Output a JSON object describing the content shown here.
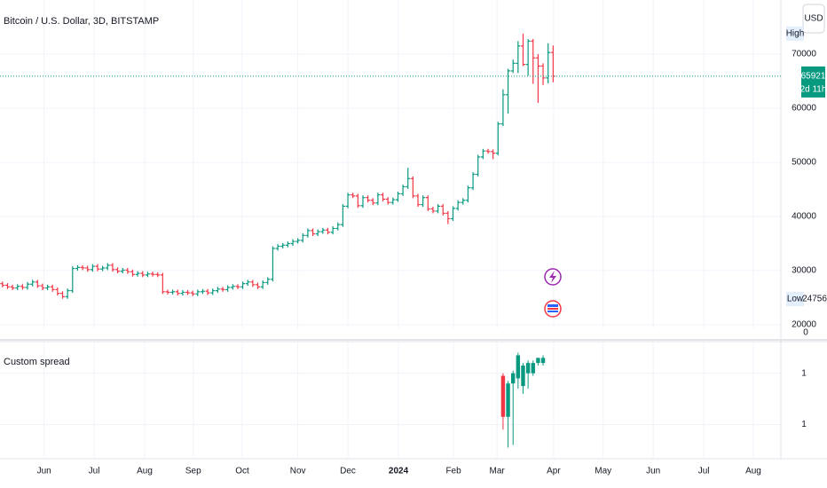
{
  "chart_data": [
    {
      "type": "ohlc",
      "title": "Bitcoin / U.S. Dollar, 3D, BITSTAMP",
      "currency": "USD",
      "up_color": "#089981",
      "down_color": "#f23645",
      "series": [
        {
          "open": [
            27600,
            27300,
            27000,
            26800,
            27100,
            26900,
            27500,
            27900,
            27200,
            26800,
            27000,
            26500,
            25800,
            25200,
            26300,
            30400,
            30600,
            30500,
            30200,
            30800,
            30300,
            30500,
            31000,
            30200,
            29900,
            30100,
            29800,
            29300,
            29500,
            29200,
            29400,
            29300,
            29200,
            26100,
            26000,
            26100,
            25800,
            26000,
            25900,
            25700,
            26100,
            26200,
            25900,
            26300,
            26600,
            26500,
            26900,
            27100,
            27000,
            27600,
            27900,
            27400,
            27000,
            27800,
            28400,
            34100,
            34500,
            34700,
            35000,
            35400,
            35600,
            36500,
            37400,
            36800,
            37200,
            37500,
            37100,
            37800,
            38500,
            41900,
            44000,
            43800,
            42000,
            43500,
            43000,
            42500,
            44000,
            43200,
            42600,
            43100,
            44200,
            45500,
            47000,
            43800,
            42200,
            43500,
            41400,
            41000,
            41900,
            40600,
            39600,
            41500,
            42600,
            43000,
            45300,
            47800,
            51000,
            52100,
            52000,
            51700,
            57100,
            62500,
            66900,
            68300,
            71500,
            68100,
            72400,
            69300,
            67800,
            65600,
            70300
          ],
          "high": [
            28000,
            27700,
            27400,
            27500,
            27500,
            27900,
            28300,
            28300,
            27600,
            27400,
            27400,
            26900,
            26200,
            26700,
            30800,
            31000,
            31000,
            30900,
            31200,
            31200,
            30900,
            31400,
            31400,
            30600,
            30500,
            30500,
            30200,
            29900,
            29900,
            29800,
            29800,
            29700,
            29600,
            26500,
            26500,
            26500,
            26400,
            26400,
            26300,
            26500,
            26600,
            26600,
            26700,
            27000,
            27000,
            27300,
            27500,
            27500,
            28000,
            28300,
            28300,
            27800,
            28200,
            28800,
            34500,
            34900,
            35100,
            35400,
            35800,
            36000,
            36900,
            37800,
            37800,
            37600,
            37900,
            37900,
            38200,
            38900,
            42300,
            44400,
            44400,
            44200,
            43900,
            43900,
            43400,
            44400,
            44400,
            43600,
            43500,
            44600,
            45900,
            49000,
            47400,
            44200,
            43900,
            43900,
            41800,
            42300,
            42300,
            41000,
            41900,
            43000,
            43400,
            45700,
            48200,
            51400,
            52500,
            52500,
            52400,
            57500,
            63500,
            67300,
            69000,
            72400,
            73800,
            72800,
            72800,
            70000,
            68300,
            72000,
            71600
          ],
          "low": [
            26900,
            26600,
            26400,
            26400,
            26500,
            26500,
            27100,
            26800,
            26400,
            26400,
            26100,
            25400,
            24800,
            24800,
            25900,
            30000,
            30100,
            29800,
            29800,
            29900,
            29900,
            30100,
            29800,
            29500,
            29500,
            29400,
            28900,
            28900,
            28800,
            28800,
            28900,
            28800,
            25700,
            25600,
            25600,
            25400,
            25400,
            25500,
            25300,
            25300,
            25700,
            25500,
            25500,
            25900,
            26100,
            26100,
            26500,
            26600,
            26600,
            27200,
            27000,
            26600,
            26600,
            27400,
            28000,
            33700,
            34100,
            34300,
            34600,
            35000,
            35200,
            36100,
            36400,
            36400,
            36800,
            36700,
            36700,
            37400,
            38100,
            41500,
            43400,
            41600,
            41600,
            42600,
            42100,
            42100,
            42800,
            42200,
            42200,
            42700,
            43800,
            45100,
            43400,
            41800,
            41800,
            41000,
            40600,
            40600,
            40200,
            38600,
            39200,
            41100,
            42200,
            42600,
            44900,
            47400,
            50600,
            51600,
            50600,
            51300,
            56700,
            59000,
            66500,
            66500,
            67800,
            66000,
            64500,
            61000,
            64300,
            64600,
            64800
          ],
          "close": [
            27300,
            27000,
            26800,
            27100,
            26900,
            27500,
            27900,
            27200,
            26800,
            27000,
            26500,
            25800,
            25200,
            26300,
            30400,
            30600,
            30500,
            30200,
            30800,
            30300,
            30500,
            31000,
            30200,
            29900,
            30100,
            29800,
            29300,
            29500,
            29200,
            29400,
            29300,
            29200,
            26100,
            26000,
            26100,
            25800,
            26000,
            25900,
            25700,
            26100,
            26200,
            25900,
            26300,
            26600,
            26500,
            26900,
            27100,
            27000,
            27600,
            27900,
            27400,
            27000,
            27800,
            28400,
            34100,
            34500,
            34700,
            35000,
            35400,
            35600,
            36500,
            37400,
            36800,
            37200,
            37500,
            37100,
            37800,
            38500,
            41900,
            44000,
            43800,
            42000,
            43500,
            43000,
            42500,
            44000,
            43200,
            42600,
            43100,
            44200,
            45500,
            47000,
            43800,
            42200,
            43500,
            41400,
            41000,
            41900,
            40600,
            39600,
            41500,
            42600,
            43000,
            45300,
            47800,
            51000,
            52100,
            52000,
            51700,
            57100,
            62500,
            66900,
            68300,
            71500,
            68100,
            72400,
            69300,
            67800,
            65600,
            70300,
            65921
          ]
        }
      ],
      "ylim": [
        19350,
        80000
      ],
      "yticks": [
        20000,
        30000,
        40000,
        50000,
        60000,
        70000
      ],
      "xlim": [
        -0.5,
        155.5
      ],
      "xticks": [
        {
          "value": 8.3,
          "label": "Jun"
        },
        {
          "value": 18.3,
          "label": "Jul"
        },
        {
          "value": 28.4,
          "label": "Aug"
        },
        {
          "value": 38.1,
          "label": "Sep"
        },
        {
          "value": 47.9,
          "label": "Oct"
        },
        {
          "value": 59.0,
          "label": "Nov"
        },
        {
          "value": 69.0,
          "label": "Dec"
        },
        {
          "value": 79.1,
          "label": "2024",
          "bold": true
        },
        {
          "value": 90.1,
          "label": "Feb"
        },
        {
          "value": 98.8,
          "label": "Mar"
        },
        {
          "value": 110.1,
          "label": "Apr"
        },
        {
          "value": 120.0,
          "label": "May"
        },
        {
          "value": 130.0,
          "label": "Jun"
        },
        {
          "value": 140.1,
          "label": "Jul"
        },
        {
          "value": 150.0,
          "label": "Aug"
        }
      ],
      "last_price": 65921,
      "last_price_color": "#089981",
      "countdown": "2d 11h",
      "high_label": "High",
      "low_label": "Low",
      "low_value": 24756,
      "y2ticks": [
        0
      ],
      "grid": true
    },
    {
      "type": "candlestick",
      "title": "Custom spread",
      "up_color": "#089981",
      "down_color": "#f23645",
      "x": [
        100,
        101,
        102,
        103,
        104,
        105,
        106,
        107,
        108
      ],
      "series": [
        {
          "open": [
            1.29,
            1.13,
            1.26,
            1.28,
            1.25,
            1.3,
            1.3,
            1.34,
            1.34
          ],
          "high": [
            1.3,
            1.27,
            1.31,
            1.38,
            1.34,
            1.35,
            1.35,
            1.36,
            1.37
          ],
          "low": [
            1.08,
            1.01,
            1.02,
            1.24,
            1.22,
            1.24,
            1.29,
            1.33,
            1.33
          ],
          "close": [
            1.13,
            1.26,
            1.3,
            1.37,
            1.33,
            1.34,
            1.34,
            1.36,
            1.36
          ]
        }
      ],
      "ylim": [
        0.97,
        1.42
      ],
      "yticks": [
        {
          "value": 1.3,
          "label": "1"
        },
        {
          "value": 1.1,
          "label": "1"
        }
      ],
      "grid": true
    }
  ]
}
